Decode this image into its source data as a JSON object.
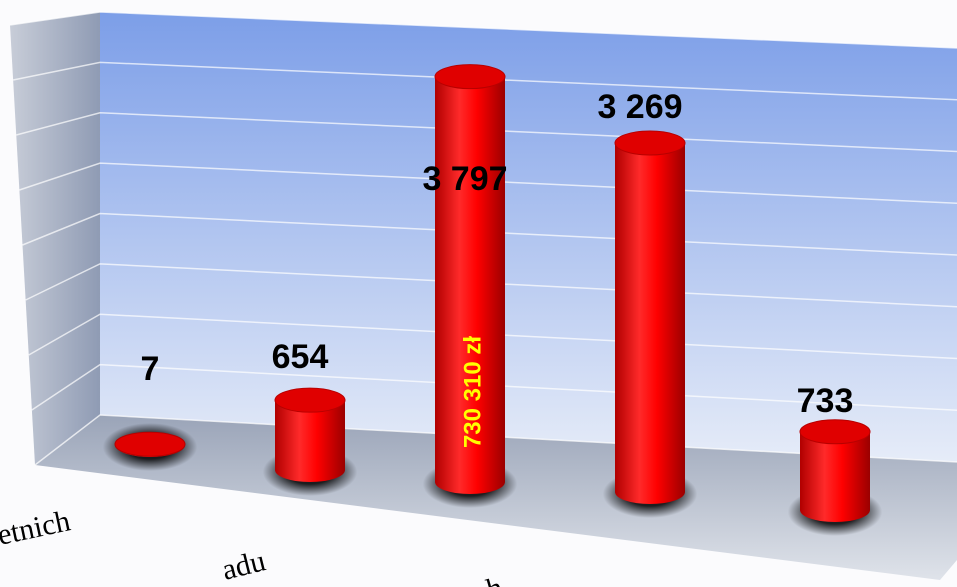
{
  "chart_data": {
    "type": "bar3d",
    "categories": [
      "etnich",
      "adu",
      "h",
      null,
      null
    ],
    "values": [
      7,
      654,
      3797,
      3269,
      733
    ],
    "value_labels": [
      "7",
      "654",
      "3 797",
      "3 269",
      "733"
    ],
    "color": "#ff0000",
    "annotation": "730 310 zł",
    "ylim": [
      0,
      4000
    ],
    "yticks": [
      0,
      500,
      1000,
      1500,
      2000,
      2500,
      3000,
      3500,
      4000
    ],
    "grid": true
  }
}
